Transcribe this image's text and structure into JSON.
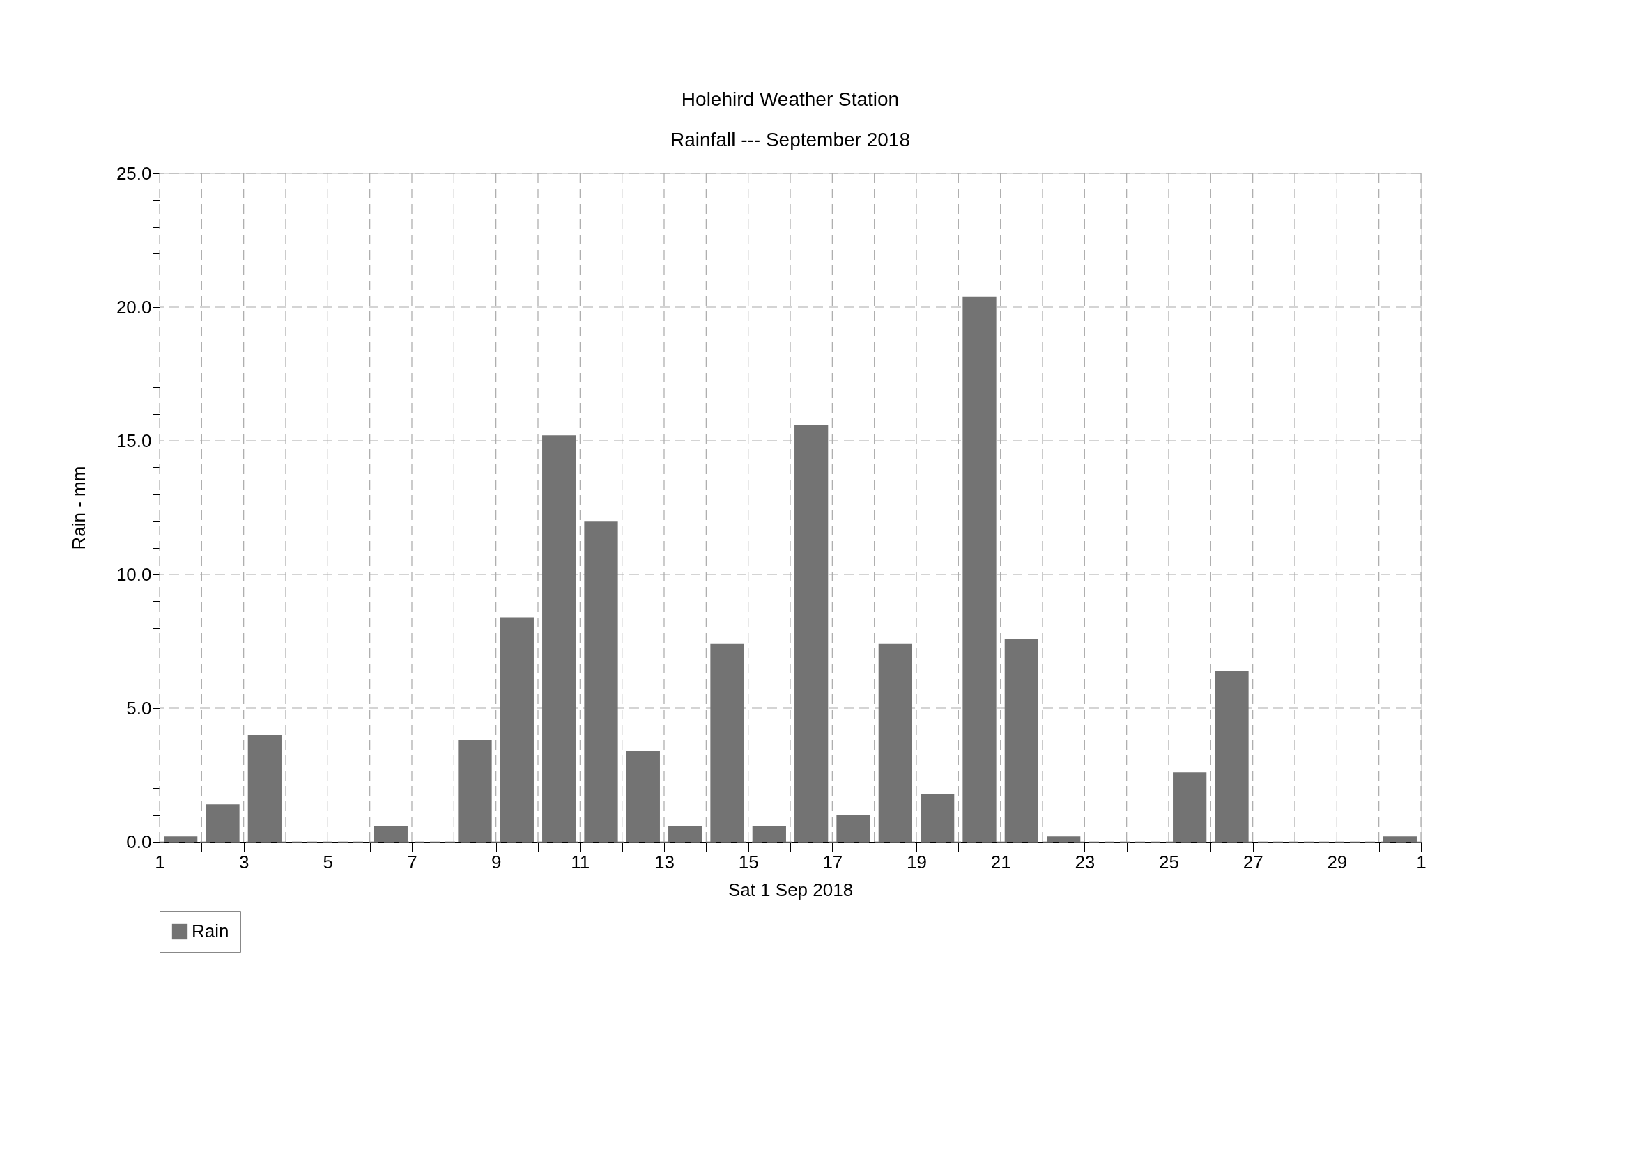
{
  "chart_data": {
    "type": "bar",
    "title": "Holehird Weather Station",
    "subtitle": "Rainfall --- September 2018",
    "xlabel": "Sat 1 Sep 2018",
    "ylabel": "Rain - mm",
    "x": [
      "2018-09-01T12:00",
      "2018-09-02T12:00",
      "2018-09-03T12:00",
      "2018-09-04T12:00",
      "2018-09-05T12:00",
      "2018-09-06T12:00",
      "2018-09-07T12:00",
      "2018-09-08T12:00",
      "2018-09-09T12:00",
      "2018-09-10T12:00",
      "2018-09-11T12:00",
      "2018-09-12T12:00",
      "2018-09-13T12:00",
      "2018-09-14T12:00",
      "2018-09-15T12:00",
      "2018-09-16T12:00",
      "2018-09-17T12:00",
      "2018-09-18T12:00",
      "2018-09-19T12:00",
      "2018-09-20T12:00",
      "2018-09-21T12:00",
      "2018-09-22T12:00",
      "2018-09-23T12:00",
      "2018-09-24T12:00",
      "2018-09-25T12:00",
      "2018-09-26T12:00",
      "2018-09-27T12:00",
      "2018-09-28T12:00",
      "2018-09-29T12:00",
      "2018-09-30T12:00"
    ],
    "series": [
      {
        "name": "Rain",
        "color": "#737373",
        "values": [
          0.2,
          1.4,
          4.0,
          0,
          0,
          0.6,
          0,
          3.8,
          8.4,
          15.2,
          12.0,
          3.4,
          0.6,
          7.4,
          0.6,
          15.6,
          1.0,
          7.4,
          1.8,
          20.4,
          7.6,
          0.2,
          0,
          0,
          2.6,
          6.4,
          0,
          0,
          0,
          0.2
        ]
      }
    ],
    "xlim": [
      "2018-09-01",
      "2018-10-01"
    ],
    "xticks": [
      {
        "value": "2018-09-01",
        "label": "1"
      },
      {
        "value": "2018-09-02",
        "label": null
      },
      {
        "value": "2018-09-03",
        "label": "3"
      },
      {
        "value": "2018-09-04",
        "label": null
      },
      {
        "value": "2018-09-05",
        "label": "5"
      },
      {
        "value": "2018-09-06",
        "label": null
      },
      {
        "value": "2018-09-07",
        "label": "7"
      },
      {
        "value": "2018-09-08",
        "label": null
      },
      {
        "value": "2018-09-09",
        "label": "9"
      },
      {
        "value": "2018-09-10",
        "label": null
      },
      {
        "value": "2018-09-11",
        "label": "11"
      },
      {
        "value": "2018-09-12",
        "label": null
      },
      {
        "value": "2018-09-13",
        "label": "13"
      },
      {
        "value": "2018-09-14",
        "label": null
      },
      {
        "value": "2018-09-15",
        "label": "15"
      },
      {
        "value": "2018-09-16",
        "label": null
      },
      {
        "value": "2018-09-17",
        "label": "17"
      },
      {
        "value": "2018-09-18",
        "label": null
      },
      {
        "value": "2018-09-19",
        "label": "19"
      },
      {
        "value": "2018-09-20",
        "label": null
      },
      {
        "value": "2018-09-21",
        "label": "21"
      },
      {
        "value": "2018-09-22",
        "label": null
      },
      {
        "value": "2018-09-23",
        "label": "23"
      },
      {
        "value": "2018-09-24",
        "label": null
      },
      {
        "value": "2018-09-25",
        "label": "25"
      },
      {
        "value": "2018-09-26",
        "label": null
      },
      {
        "value": "2018-09-27",
        "label": "27"
      },
      {
        "value": "2018-09-28",
        "label": null
      },
      {
        "value": "2018-09-29",
        "label": "29"
      },
      {
        "value": "2018-09-30",
        "label": null
      },
      {
        "value": "2018-10-01",
        "label": "1"
      }
    ],
    "ylim": [
      0,
      25
    ],
    "yticks": [
      {
        "value": 0,
        "label": "0.0"
      },
      {
        "value": 1,
        "label": null
      },
      {
        "value": 2,
        "label": null
      },
      {
        "value": 3,
        "label": null
      },
      {
        "value": 4,
        "label": null
      },
      {
        "value": 5,
        "label": "5.0"
      },
      {
        "value": 6,
        "label": null
      },
      {
        "value": 7,
        "label": null
      },
      {
        "value": 8,
        "label": null
      },
      {
        "value": 9,
        "label": null
      },
      {
        "value": 10,
        "label": "10.0"
      },
      {
        "value": 11,
        "label": null
      },
      {
        "value": 12,
        "label": null
      },
      {
        "value": 13,
        "label": null
      },
      {
        "value": 14,
        "label": null
      },
      {
        "value": 15,
        "label": "15.0"
      },
      {
        "value": 16,
        "label": null
      },
      {
        "value": 17,
        "label": null
      },
      {
        "value": 18,
        "label": null
      },
      {
        "value": 19,
        "label": null
      },
      {
        "value": 20,
        "label": "20.0"
      },
      {
        "value": 21,
        "label": null
      },
      {
        "value": 22,
        "label": null
      },
      {
        "value": 23,
        "label": null
      },
      {
        "value": 24,
        "label": null
      },
      {
        "value": 25,
        "label": "25.0"
      }
    ],
    "grid": true,
    "legend": "bottom"
  }
}
